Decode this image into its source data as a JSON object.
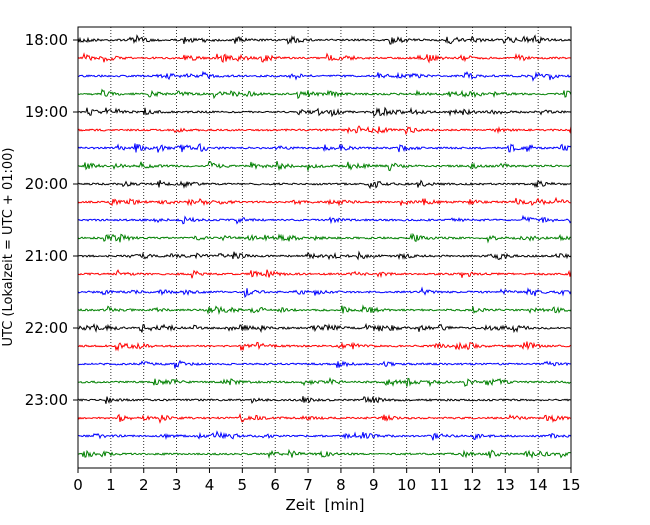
{
  "chart_data": {
    "type": "line",
    "title": "",
    "xlabel": "Zeit  [min]",
    "ylabel": "UTC (Lokalzeit = UTC + 01:00)",
    "xlim": [
      0,
      15
    ],
    "x_ticks": [
      "0",
      "1",
      "2",
      "3",
      "4",
      "5",
      "6",
      "7",
      "8",
      "9",
      "10",
      "11",
      "12",
      "13",
      "14",
      "15"
    ],
    "y_ticks": [
      "18:00",
      "19:00",
      "20:00",
      "21:00",
      "22:00",
      "23:00"
    ],
    "vertical_grid": "dotted, at each minute",
    "trace_interval_minutes": 15,
    "trace_colors_cycle": [
      "#000000",
      "#ff0000",
      "#0000ff",
      "#008000"
    ],
    "series": [
      {
        "start_time": "18:00",
        "color": "#000000"
      },
      {
        "start_time": "18:15",
        "color": "#ff0000"
      },
      {
        "start_time": "18:30",
        "color": "#0000ff"
      },
      {
        "start_time": "18:45",
        "color": "#008000"
      },
      {
        "start_time": "19:00",
        "color": "#000000"
      },
      {
        "start_time": "19:15",
        "color": "#ff0000"
      },
      {
        "start_time": "19:30",
        "color": "#0000ff"
      },
      {
        "start_time": "19:45",
        "color": "#008000"
      },
      {
        "start_time": "20:00",
        "color": "#000000"
      },
      {
        "start_time": "20:15",
        "color": "#ff0000"
      },
      {
        "start_time": "20:30",
        "color": "#0000ff"
      },
      {
        "start_time": "20:45",
        "color": "#008000"
      },
      {
        "start_time": "21:00",
        "color": "#000000"
      },
      {
        "start_time": "21:15",
        "color": "#ff0000"
      },
      {
        "start_time": "21:30",
        "color": "#0000ff"
      },
      {
        "start_time": "21:45",
        "color": "#008000"
      },
      {
        "start_time": "22:00",
        "color": "#000000"
      },
      {
        "start_time": "22:15",
        "color": "#ff0000"
      },
      {
        "start_time": "22:30",
        "color": "#0000ff"
      },
      {
        "start_time": "22:45",
        "color": "#008000"
      },
      {
        "start_time": "23:00",
        "color": "#000000"
      },
      {
        "start_time": "23:15",
        "color": "#ff0000"
      },
      {
        "start_time": "23:30",
        "color": "#0000ff"
      },
      {
        "start_time": "23:45",
        "color": "#008000"
      }
    ]
  }
}
